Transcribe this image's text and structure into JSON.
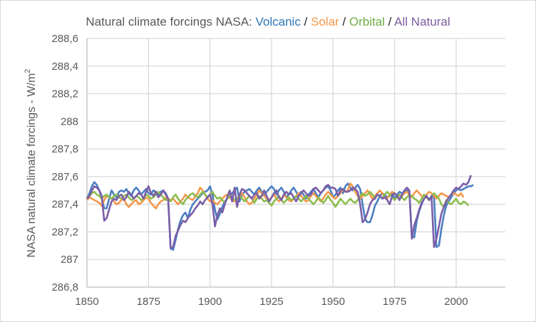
{
  "chart_data": {
    "type": "line",
    "title": "Natural climate forcings NASA: Volcanic / Solar / Orbital / All Natural",
    "title_parts": [
      {
        "text": "Natural climate forcings NASA: ",
        "color": "#595959"
      },
      {
        "text": "Volcanic",
        "color": "#2e75b6"
      },
      {
        "text": " / ",
        "color": "#262626"
      },
      {
        "text": "Solar",
        "color": "#f4974a"
      },
      {
        "text": " / ",
        "color": "#262626"
      },
      {
        "text": "Orbital",
        "color": "#70ad47"
      },
      {
        "text": " / ",
        "color": "#262626"
      },
      {
        "text": "All Natural",
        "color": "#7a5c9e"
      }
    ],
    "xlabel": "",
    "ylabel": "NASA natural climate forcings - W/m",
    "ylabel_sup": "2",
    "xlim": [
      1850,
      2020
    ],
    "ylim": [
      286.8,
      288.6
    ],
    "grid": true,
    "x_ticks": [
      "1850",
      "1875",
      "1900",
      "1925",
      "1950",
      "1975",
      "2000"
    ],
    "x_tick_values": [
      1850,
      1875,
      1900,
      1925,
      1950,
      1975,
      2000
    ],
    "y_ticks": [
      "286,8",
      "287",
      "287,2",
      "287,4",
      "287,6",
      "287,8",
      "288",
      "288,2",
      "288,4",
      "288,6"
    ],
    "y_tick_values": [
      286.8,
      287.0,
      287.2,
      287.4,
      287.6,
      287.8,
      288.0,
      288.2,
      288.4,
      288.6
    ],
    "x_start": 1850,
    "series": [
      {
        "name": "Volcanic",
        "color": "#4a7fc1",
        "values": [
          287.44,
          287.48,
          287.53,
          287.56,
          287.54,
          287.5,
          287.44,
          287.37,
          287.37,
          287.44,
          287.5,
          287.47,
          287.45,
          287.49,
          287.5,
          287.49,
          287.51,
          287.48,
          287.46,
          287.5,
          287.52,
          287.5,
          287.47,
          287.49,
          287.51,
          287.48,
          287.47,
          287.5,
          287.49,
          287.47,
          287.49,
          287.5,
          287.48,
          287.44,
          287.08,
          287.07,
          287.14,
          287.22,
          287.28,
          287.32,
          287.34,
          287.3,
          287.36,
          287.4,
          287.42,
          287.44,
          287.46,
          287.48,
          287.49,
          287.5,
          287.53,
          287.47,
          287.36,
          287.29,
          287.33,
          287.38,
          287.42,
          287.44,
          287.46,
          287.48,
          287.5,
          287.52,
          287.42,
          287.47,
          287.49,
          287.5,
          287.51,
          287.49,
          287.47,
          287.5,
          287.52,
          287.49,
          287.46,
          287.49,
          287.51,
          287.53,
          287.51,
          287.47,
          287.5,
          287.52,
          287.49,
          287.45,
          287.47,
          287.5,
          287.52,
          287.49,
          287.46,
          287.49,
          287.47,
          287.44,
          287.47,
          287.49,
          287.51,
          287.48,
          287.45,
          287.48,
          287.5,
          287.52,
          287.53,
          287.5,
          287.45,
          287.47,
          287.5,
          287.52,
          287.48,
          287.53,
          287.55,
          287.52,
          287.5,
          287.52,
          287.54,
          287.51,
          287.4,
          287.29,
          287.27,
          287.27,
          287.32,
          287.39,
          287.42,
          287.46,
          287.48,
          287.47,
          287.45,
          287.46,
          287.48,
          287.44,
          287.47,
          287.49,
          287.48,
          287.49,
          287.5,
          287.49,
          287.17,
          287.16,
          287.28,
          287.35,
          287.4,
          287.44,
          287.46,
          287.43,
          287.45,
          287.46,
          287.09,
          287.1,
          287.22,
          287.32,
          287.39,
          287.42,
          287.45,
          287.48,
          287.5,
          287.51,
          287.5,
          287.51,
          287.52,
          287.53,
          287.53,
          287.54
        ]
      },
      {
        "name": "Solar",
        "color": "#f4974a",
        "values": [
          287.43,
          287.45,
          287.44,
          287.43,
          287.42,
          287.41,
          287.39,
          287.43,
          287.46,
          287.45,
          287.44,
          287.42,
          287.4,
          287.41,
          287.43,
          287.44,
          287.4,
          287.38,
          287.4,
          287.42,
          287.43,
          287.4,
          287.41,
          287.43,
          287.45,
          287.44,
          287.41,
          287.39,
          287.37,
          287.4,
          287.42,
          287.43,
          287.45,
          287.44,
          287.43,
          287.44,
          287.42,
          287.4,
          287.42,
          287.44,
          287.47,
          287.45,
          287.44,
          287.43,
          287.46,
          287.48,
          287.52,
          287.5,
          287.47,
          287.44,
          287.42,
          287.43,
          287.41,
          287.4,
          287.42,
          287.44,
          287.46,
          287.47,
          287.45,
          287.43,
          287.42,
          287.44,
          287.46,
          287.48,
          287.45,
          287.42,
          287.4,
          287.41,
          287.44,
          287.47,
          287.5,
          287.48,
          287.46,
          287.44,
          287.43,
          287.45,
          287.47,
          287.44,
          287.42,
          287.44,
          287.47,
          287.45,
          287.43,
          287.42,
          287.44,
          287.46,
          287.48,
          287.46,
          287.44,
          287.42,
          287.43,
          287.46,
          287.48,
          287.46,
          287.44,
          287.42,
          287.44,
          287.47,
          287.49,
          287.47,
          287.45,
          287.44,
          287.46,
          287.48,
          287.51,
          287.49,
          287.5,
          287.55,
          287.53,
          287.49,
          287.46,
          287.44,
          287.46,
          287.48,
          287.5,
          287.47,
          287.44,
          287.46,
          287.48,
          287.5,
          287.48,
          287.45,
          287.44,
          287.47,
          287.49,
          287.48,
          287.46,
          287.44,
          287.46,
          287.48,
          287.49,
          287.47,
          287.45,
          287.48,
          287.5,
          287.48,
          287.46,
          287.44,
          287.47,
          287.49,
          287.48,
          287.46,
          287.44,
          287.46,
          287.48,
          287.47,
          287.46,
          287.45,
          287.47,
          287.48,
          287.47,
          287.46,
          287.48,
          287.45
        ]
      },
      {
        "name": "Orbital",
        "color": "#8cbd4f",
        "values": [
          287.45,
          287.46,
          287.48,
          287.49,
          287.47,
          287.46,
          287.44,
          287.46,
          287.47,
          287.45,
          287.44,
          287.46,
          287.47,
          287.45,
          287.44,
          287.46,
          287.47,
          287.45,
          287.43,
          287.44,
          287.46,
          287.45,
          287.43,
          287.44,
          287.47,
          287.46,
          287.44,
          287.45,
          287.47,
          287.49,
          287.47,
          287.45,
          287.43,
          287.44,
          287.42,
          287.45,
          287.47,
          287.44,
          287.42,
          287.4,
          287.43,
          287.45,
          287.47,
          287.48,
          287.46,
          287.45,
          287.47,
          287.49,
          287.47,
          287.45,
          287.47,
          287.49,
          287.46,
          287.44,
          287.45,
          287.43,
          287.41,
          287.44,
          287.46,
          287.45,
          287.43,
          287.44,
          287.46,
          287.44,
          287.42,
          287.44,
          287.46,
          287.44,
          287.41,
          287.44,
          287.46,
          287.44,
          287.42,
          287.43,
          287.41,
          287.39,
          287.42,
          287.44,
          287.46,
          287.43,
          287.41,
          287.43,
          287.45,
          287.43,
          287.44,
          287.46,
          287.44,
          287.42,
          287.44,
          287.46,
          287.44,
          287.42,
          287.4,
          287.42,
          287.45,
          287.43,
          287.41,
          287.43,
          287.46,
          287.43,
          287.41,
          287.38,
          287.41,
          287.44,
          287.42,
          287.4,
          287.42,
          287.44,
          287.42,
          287.41,
          287.43,
          287.46,
          287.48,
          287.46,
          287.47,
          287.49,
          287.47,
          287.45,
          287.47,
          287.46,
          287.44,
          287.47,
          287.49,
          287.47,
          287.45,
          287.43,
          287.45,
          287.47,
          287.45,
          287.43,
          287.45,
          287.47,
          287.46,
          287.44,
          287.43,
          287.41,
          287.44,
          287.47,
          287.45,
          287.43,
          287.46,
          287.48,
          287.46,
          287.44,
          287.4,
          287.38,
          287.43,
          287.41,
          287.4,
          287.42,
          287.44,
          287.41,
          287.4,
          287.42,
          287.41,
          287.39
        ]
      },
      {
        "name": "All Natural",
        "color": "#7b5ea7",
        "values": [
          287.44,
          287.46,
          287.5,
          287.53,
          287.52,
          287.5,
          287.46,
          287.28,
          287.3,
          287.36,
          287.42,
          287.44,
          287.43,
          287.46,
          287.47,
          287.43,
          287.45,
          287.49,
          287.47,
          287.44,
          287.46,
          287.48,
          287.47,
          287.44,
          287.49,
          287.53,
          287.48,
          287.46,
          287.49,
          287.45,
          287.47,
          287.5,
          287.47,
          287.44,
          287.08,
          287.09,
          287.17,
          287.21,
          287.25,
          287.28,
          287.27,
          287.3,
          287.32,
          287.34,
          287.37,
          287.39,
          287.42,
          287.4,
          287.43,
          287.45,
          287.47,
          287.4,
          287.24,
          287.32,
          287.37,
          287.34,
          287.4,
          287.45,
          287.5,
          287.42,
          287.52,
          287.38,
          287.47,
          287.51,
          287.5,
          287.48,
          287.46,
          287.44,
          287.47,
          287.48,
          287.44,
          287.46,
          287.5,
          287.46,
          287.42,
          287.45,
          287.48,
          287.5,
          287.45,
          287.43,
          287.47,
          287.49,
          287.47,
          287.48,
          287.45,
          287.42,
          287.46,
          287.48,
          287.5,
          287.48,
          287.46,
          287.47,
          287.51,
          287.52,
          287.5,
          287.48,
          287.5,
          287.53,
          287.54,
          287.52,
          287.52,
          287.51,
          287.46,
          287.5,
          287.51,
          287.49,
          287.49,
          287.5,
          287.52,
          287.51,
          287.49,
          287.4,
          287.27,
          287.29,
          287.34,
          287.4,
          287.43,
          287.44,
          287.47,
          287.46,
          287.44,
          287.45,
          287.43,
          287.4,
          287.46,
          287.48,
          287.46,
          287.43,
          287.47,
          287.5,
          287.52,
          287.5,
          287.15,
          287.25,
          287.3,
          287.36,
          287.41,
          287.44,
          287.46,
          287.43,
          287.46,
          287.09,
          287.15,
          287.24,
          287.33,
          287.38,
          287.42,
          287.45,
          287.47,
          287.5,
          287.52,
          287.51,
          287.53,
          287.55,
          287.54,
          287.56,
          287.61
        ]
      }
    ]
  }
}
